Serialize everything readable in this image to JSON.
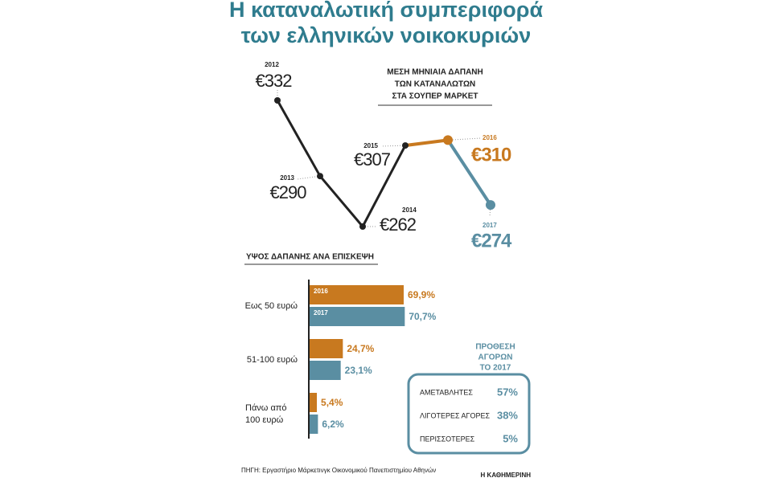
{
  "title": [
    "Η καταναλωτική συμπεριφορά",
    "των ελληνικών νοικοκυριών"
  ],
  "chart_data": [
    {
      "type": "line",
      "title": [
        "ΜΕΣΗ ΜΗΝΙΑΙΑ ΔΑΠΑΝΗ",
        "ΤΩΝ ΚΑΤΑΝΑΛΩΤΩΝ",
        "ΣΤΑ ΣΟΥΠΕΡ ΜΑΡΚΕΤ"
      ],
      "x": [
        "2012",
        "2013",
        "2014",
        "2015",
        "2016",
        "2017"
      ],
      "values": [
        332,
        290,
        262,
        307,
        310,
        274
      ],
      "value_labels": [
        "€332",
        "€290",
        "€262",
        "€307",
        "€310",
        "€274"
      ],
      "point_colors": [
        "#222222",
        "#222222",
        "#222222",
        "#222222",
        "#c8791f",
        "#5a8ea2"
      ]
    },
    {
      "type": "bar",
      "title": "ΥΨΟΣ ΔΑΠΑΝΗΣ ΑΝΑ ΕΠΙΣΚΕΨΗ",
      "categories": [
        "Εως 50 ευρώ",
        "51-100 ευρώ",
        "Πάνω από 100 ευρώ"
      ],
      "series": [
        {
          "name": "2016",
          "color": "#c8791f",
          "values": [
            69.9,
            24.7,
            5.4
          ],
          "value_labels": [
            "69,9%",
            "24,7%",
            "5,4%"
          ]
        },
        {
          "name": "2017",
          "color": "#5a8ea2",
          "values": [
            70.7,
            23.1,
            6.2
          ],
          "value_labels": [
            "70,7%",
            "23,1%",
            "6,2%"
          ]
        }
      ]
    }
  ],
  "intent": {
    "title": [
      "ΠΡΟΘΕΣΗ",
      "ΑΓΟΡΩΝ",
      "ΤΟ 2017"
    ],
    "rows": [
      [
        "ΑΜΕΤΑΒΛΗΤΕΣ",
        "57%"
      ],
      [
        "ΛΙΓΟΤΕΡΕΣ ΑΓΟΡΕΣ",
        "38%"
      ],
      [
        "ΠΕΡΙΣΣΟΤΕΡΕΣ",
        "5%"
      ]
    ]
  },
  "source": "ΠΗΓΗ: Εργαστήριο Μάρκετινγκ Οικονομικού Πανεπιστημίου Αθηνών",
  "credit": "Η ΚΑΘΗΜΕΡΙΝΗ"
}
